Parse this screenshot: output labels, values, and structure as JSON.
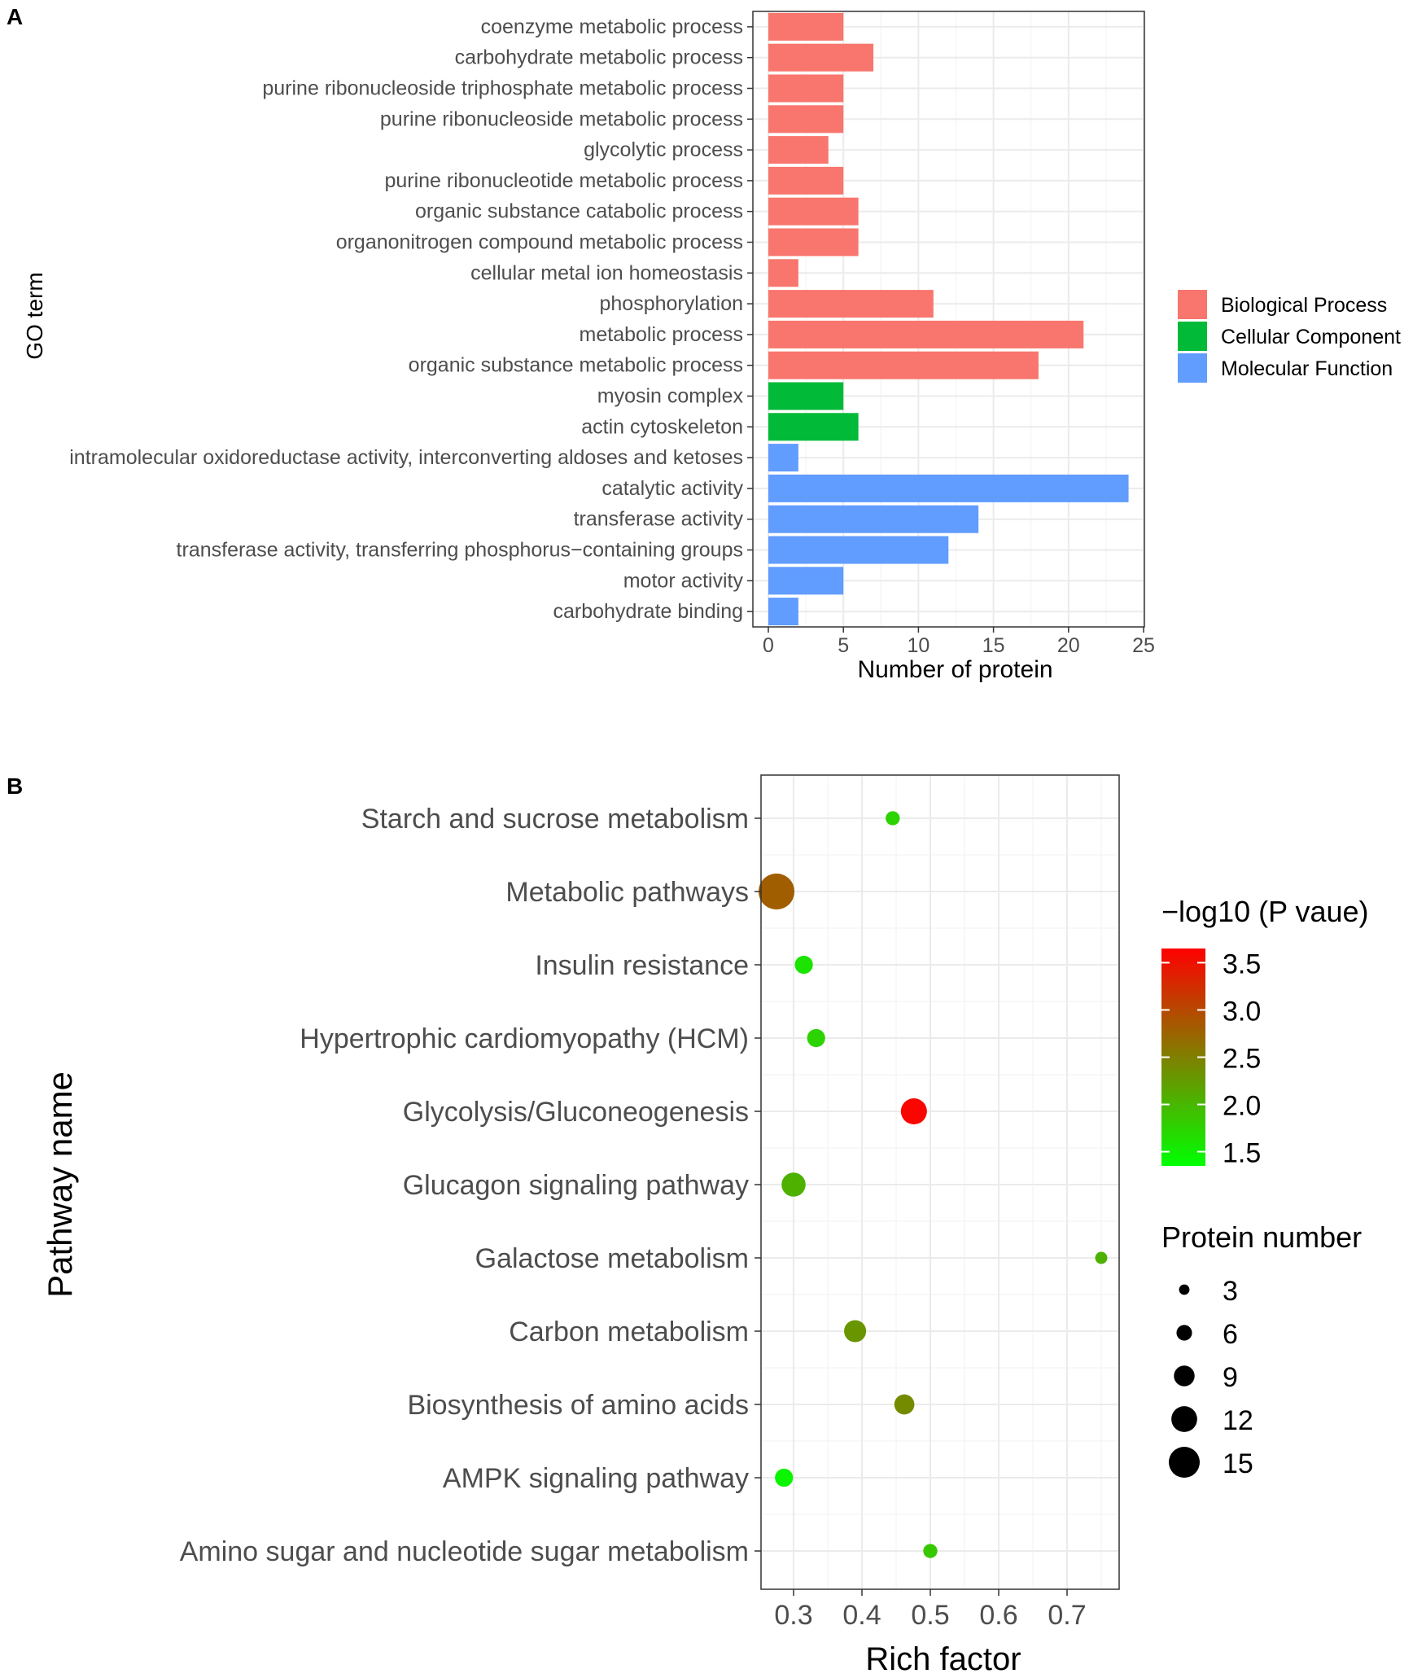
{
  "chart_data": [
    {
      "panel": "A",
      "type": "bar",
      "orientation": "horizontal",
      "xlabel": "Number of protein",
      "ylabel": "GO term",
      "xlim": [
        0,
        25
      ],
      "xticks": [
        "0",
        "5",
        "10",
        "15",
        "20",
        "25"
      ],
      "grid": true,
      "legend_position": "right",
      "legend": [
        {
          "name": "Biological Process",
          "color": "#F8766D"
        },
        {
          "name": "Cellular Component",
          "color": "#00BA38"
        },
        {
          "name": "Molecular Function",
          "color": "#619CFF"
        }
      ],
      "categories": [
        "coenzyme metabolic process",
        "carbohydrate metabolic process",
        "purine ribonucleoside triphosphate metabolic process",
        "purine ribonucleoside metabolic process",
        "glycolytic process",
        "purine ribonucleotide metabolic process",
        "organic substance catabolic process",
        "organonitrogen compound metabolic process",
        "cellular metal ion homeostasis",
        "phosphorylation",
        "metabolic process",
        "organic substance metabolic process",
        "myosin complex",
        "actin cytoskeleton",
        "intramolecular oxidoreductase activity, interconverting aldoses and ketoses",
        "catalytic activity",
        "transferase activity",
        "transferase activity, transferring phosphorus−containing groups",
        "motor activity",
        "carbohydrate binding"
      ],
      "values": [
        5,
        7,
        5,
        5,
        4,
        5,
        6,
        6,
        2,
        11,
        21,
        18,
        5,
        6,
        2,
        24,
        14,
        12,
        5,
        2
      ],
      "groups": [
        "Biological Process",
        "Biological Process",
        "Biological Process",
        "Biological Process",
        "Biological Process",
        "Biological Process",
        "Biological Process",
        "Biological Process",
        "Biological Process",
        "Biological Process",
        "Biological Process",
        "Biological Process",
        "Cellular Component",
        "Cellular Component",
        "Molecular Function",
        "Molecular Function",
        "Molecular Function",
        "Molecular Function",
        "Molecular Function",
        "Molecular Function"
      ]
    },
    {
      "panel": "B",
      "type": "scatter",
      "xlabel": "Rich factor",
      "ylabel": "Pathway name",
      "xlim": [
        0.25,
        0.77
      ],
      "xticks": [
        0.3,
        0.4,
        0.5,
        0.6,
        0.7
      ],
      "xtick_labels": [
        "0.3",
        "0.4",
        "0.5",
        "0.6",
        "0.7"
      ],
      "grid": true,
      "legend_position": "right",
      "color_legend": {
        "title": "−log10 (P vaue)",
        "ticks": [
          3.5,
          3.0,
          2.5,
          2.0,
          1.5
        ],
        "tick_labels": [
          "3.5",
          "3.0",
          "2.5",
          "2.0",
          "1.5"
        ],
        "range": [
          1.35,
          3.65
        ],
        "low_color": "#00FF00",
        "high_color": "#FF0000"
      },
      "size_legend": {
        "title": "Protein number",
        "values": [
          3,
          6,
          9,
          12,
          15
        ],
        "labels": [
          "3",
          "6",
          "9",
          "12",
          "15"
        ]
      },
      "points": [
        {
          "name": "Starch and sucrose metabolism",
          "rich_factor": 0.445,
          "neg_log10_p": 1.75,
          "protein_number": 4
        },
        {
          "name": "Metabolic pathways",
          "rich_factor": 0.275,
          "neg_log10_p": 2.8,
          "protein_number": 15
        },
        {
          "name": "Insulin resistance",
          "rich_factor": 0.315,
          "neg_log10_p": 1.6,
          "protein_number": 6
        },
        {
          "name": "Hypertrophic cardiomyopathy (HCM)",
          "rich_factor": 0.333,
          "neg_log10_p": 1.75,
          "protein_number": 6
        },
        {
          "name": "Glycolysis/Gluconeogenesis",
          "rich_factor": 0.476,
          "neg_log10_p": 3.6,
          "protein_number": 10
        },
        {
          "name": "Glucagon signaling pathway",
          "rich_factor": 0.3,
          "neg_log10_p": 2.05,
          "protein_number": 9
        },
        {
          "name": "Galactose metabolism",
          "rich_factor": 0.75,
          "neg_log10_p": 2.05,
          "protein_number": 3
        },
        {
          "name": "Carbon metabolism",
          "rich_factor": 0.39,
          "neg_log10_p": 2.3,
          "protein_number": 8
        },
        {
          "name": "Biosynthesis of amino acids",
          "rich_factor": 0.462,
          "neg_log10_p": 2.4,
          "protein_number": 7
        },
        {
          "name": "AMPK signaling pathway",
          "rich_factor": 0.286,
          "neg_log10_p": 1.45,
          "protein_number": 6
        },
        {
          "name": "Amino sugar and nucleotide sugar metabolism",
          "rich_factor": 0.5,
          "neg_log10_p": 1.85,
          "protein_number": 4
        }
      ]
    }
  ]
}
